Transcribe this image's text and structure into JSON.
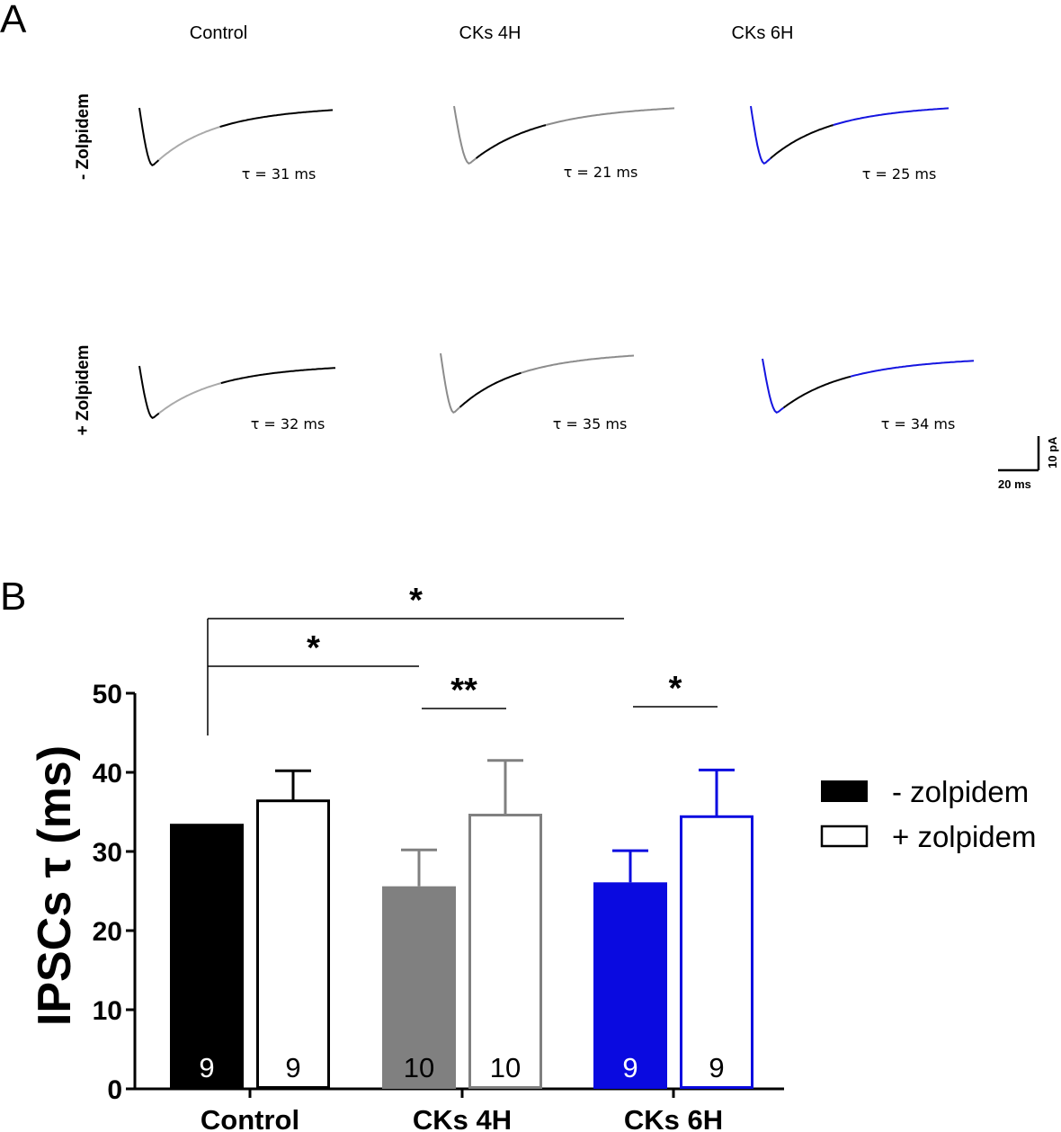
{
  "panel_a": {
    "letter": "A",
    "conditions": [
      {
        "name": "Control",
        "color": "#000000",
        "alt_color": "#aaaaaa"
      },
      {
        "name": "CKs 4H",
        "color": "#8c8c8c",
        "alt_color": "#000000"
      },
      {
        "name": "CKs 6H",
        "color": "#1515e0",
        "alt_color": "#000000"
      }
    ],
    "rows": [
      {
        "label": "- Zolpidem",
        "tau": [
          "τ =  31 ms",
          "τ =  21 ms",
          "τ =  25 ms"
        ]
      },
      {
        "label": "+ Zolpidem",
        "tau": [
          "τ = 32 ms",
          "τ =  35 ms",
          "τ =  34 ms"
        ]
      }
    ],
    "scale_bar": {
      "x_label": "20 ms",
      "y_label": "10 pA"
    }
  },
  "panel_b_letter": "B",
  "chart_data": {
    "type": "bar",
    "title": "",
    "xlabel": "",
    "ylabel": "IPSCs τ (ms)",
    "ylim": [
      0,
      50
    ],
    "yticks": [
      "0",
      "10",
      "20",
      "30",
      "40",
      "50"
    ],
    "categories": [
      "Control",
      "CKs 4H",
      "CKs 6H"
    ],
    "series": [
      {
        "name": "- zolpidem",
        "filled": true,
        "values": [
          33.5,
          25.6,
          26.1
        ],
        "errors": [
          0,
          4.6,
          4.0
        ],
        "n": [
          "9",
          "10",
          "9"
        ]
      },
      {
        "name": "+ zolpidem",
        "filled": false,
        "values": [
          36.4,
          34.6,
          34.4
        ],
        "errors": [
          3.8,
          6.9,
          5.9
        ],
        "n": [
          "9",
          "10",
          "9"
        ]
      }
    ],
    "colors": [
      "#000000",
      "#808080",
      "#0a0ae0"
    ],
    "significance": [
      {
        "label": "*",
        "from": "Control - zolpidem",
        "to": "CKs 6H - zolpidem"
      },
      {
        "label": "*",
        "from": "Control - zolpidem",
        "to": "CKs 4H - zolpidem"
      },
      {
        "label": "**",
        "from": "CKs 4H - zolpidem",
        "to": "CKs 4H + zolpidem"
      },
      {
        "label": "*",
        "from": "CKs 6H - zolpidem",
        "to": "CKs 6H + zolpidem"
      }
    ],
    "legend": {
      "position": "right",
      "entries": [
        "- zolpidem",
        "+ zolpidem"
      ]
    }
  }
}
